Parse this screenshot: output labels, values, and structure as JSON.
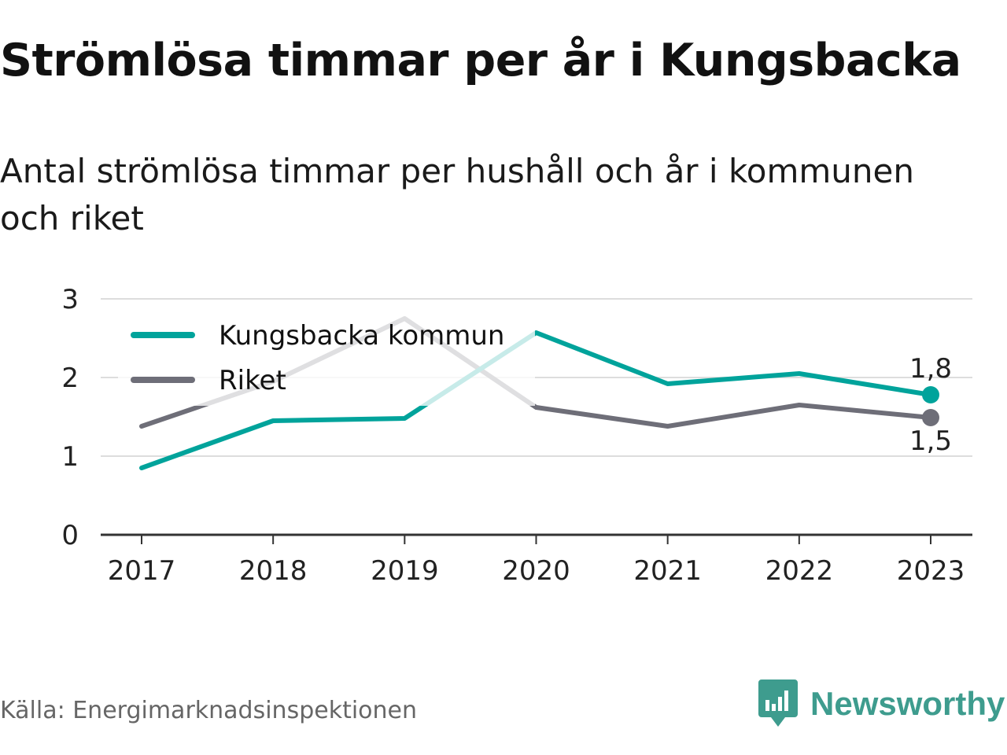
{
  "title": "Strömlösa timmar per år i Kungsbacka",
  "subtitle": "Antal strömlösa timmar per hushåll och år i kommunen och riket",
  "source": "Källa: Energimarknadsinspektionen",
  "brand": {
    "name": "Newsworthy",
    "icon": "newsworthy-logo-icon",
    "color": "#3e9c8e"
  },
  "chart_data": {
    "type": "line",
    "x": [
      "2017",
      "2018",
      "2019",
      "2020",
      "2021",
      "2022",
      "2023"
    ],
    "y_ticks": [
      "0",
      "1",
      "2",
      "3"
    ],
    "ylim": [
      0,
      3
    ],
    "grid": true,
    "legend_position": "top-left",
    "series": [
      {
        "name": "Kungsbacka kommun",
        "color": "#00a39b",
        "values": [
          0.85,
          1.45,
          1.48,
          2.57,
          1.92,
          2.05,
          1.78
        ],
        "end_label": "1,8"
      },
      {
        "name": "Riket",
        "color": "#6e6e78",
        "values": [
          1.38,
          1.95,
          2.75,
          1.62,
          1.38,
          1.65,
          1.49
        ],
        "end_label": "1,5"
      }
    ]
  }
}
